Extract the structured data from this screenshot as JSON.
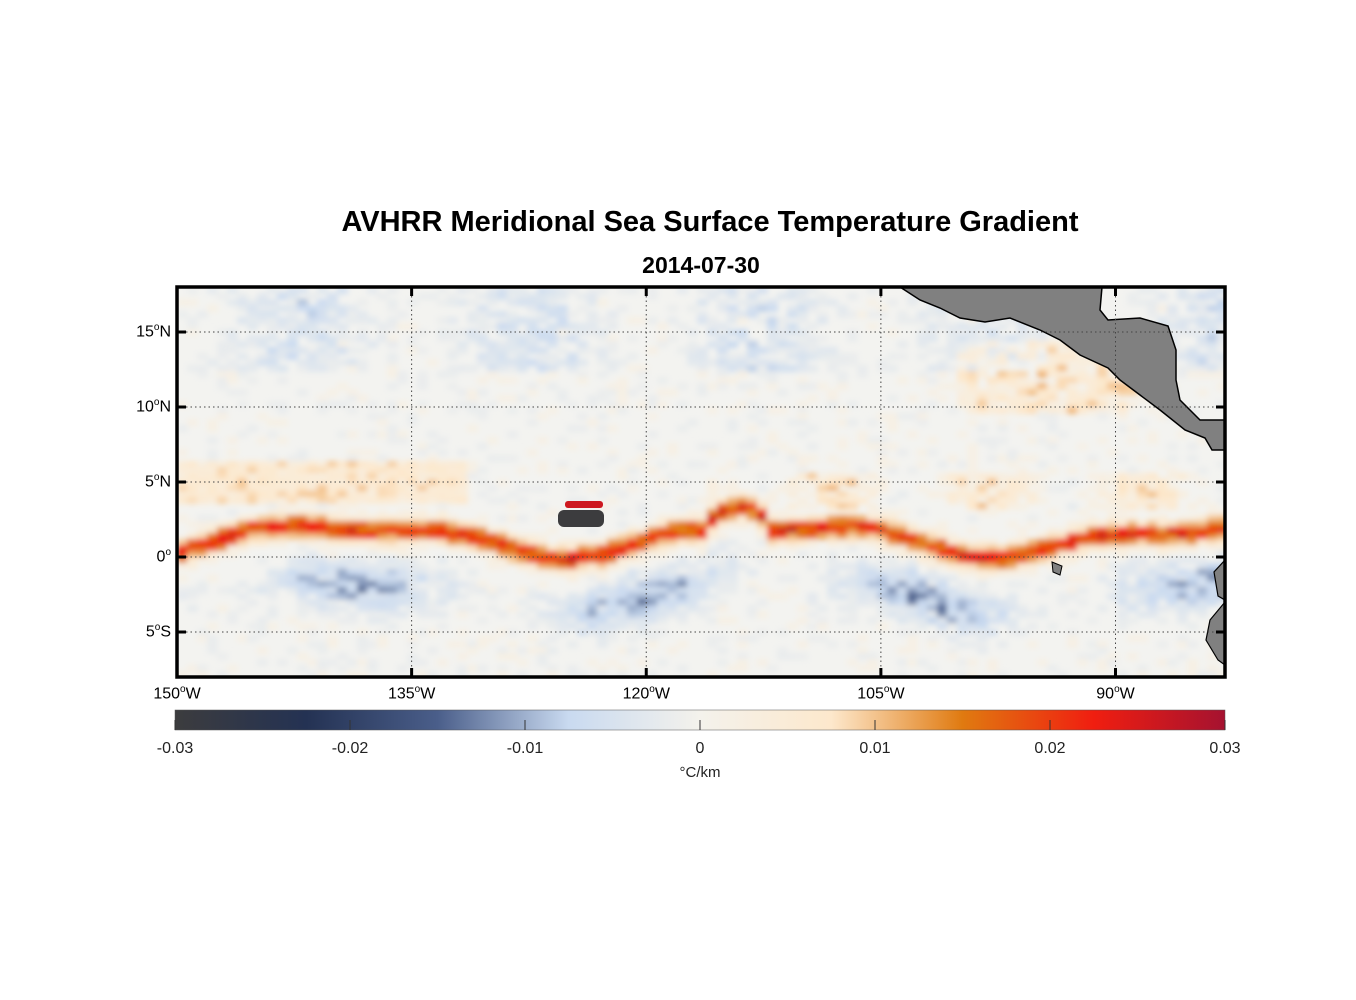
{
  "title": "AVHRR Meridional Sea Surface Temperature Gradient",
  "subtitle": "2014-07-30",
  "map": {
    "lon_range": [
      -150,
      -83
    ],
    "lat_range": [
      -8,
      18
    ],
    "lat_ticks": [
      {
        "value": 15,
        "num": "15",
        "hemi": "N"
      },
      {
        "value": 10,
        "num": "10",
        "hemi": "N"
      },
      {
        "value": 5,
        "num": "5",
        "hemi": "N"
      },
      {
        "value": 0,
        "num": "0",
        "hemi": ""
      },
      {
        "value": -5,
        "num": "5",
        "hemi": "S"
      }
    ],
    "lon_ticks": [
      {
        "value": -150,
        "num": "150",
        "hemi": "W"
      },
      {
        "value": -135,
        "num": "135",
        "hemi": "W"
      },
      {
        "value": -120,
        "num": "120",
        "hemi": "W"
      },
      {
        "value": -105,
        "num": "105",
        "hemi": "W"
      },
      {
        "value": -90,
        "num": "90",
        "hemi": "W"
      }
    ],
    "grid": "dotted",
    "land_color": "#808080"
  },
  "colorbar": {
    "min": -0.03,
    "max": 0.03,
    "tick_labels": [
      "-0.03",
      "-0.02",
      "-0.01",
      "0",
      "0.01",
      "0.02",
      "0.03"
    ],
    "units": "°C/km",
    "colors": [
      "#3c3c3e",
      "#243253",
      "#4a5e8a",
      "#c9daf0",
      "#f4f2ec",
      "#fde8cc",
      "#e07a10",
      "#f01e10",
      "#a51230"
    ]
  }
}
